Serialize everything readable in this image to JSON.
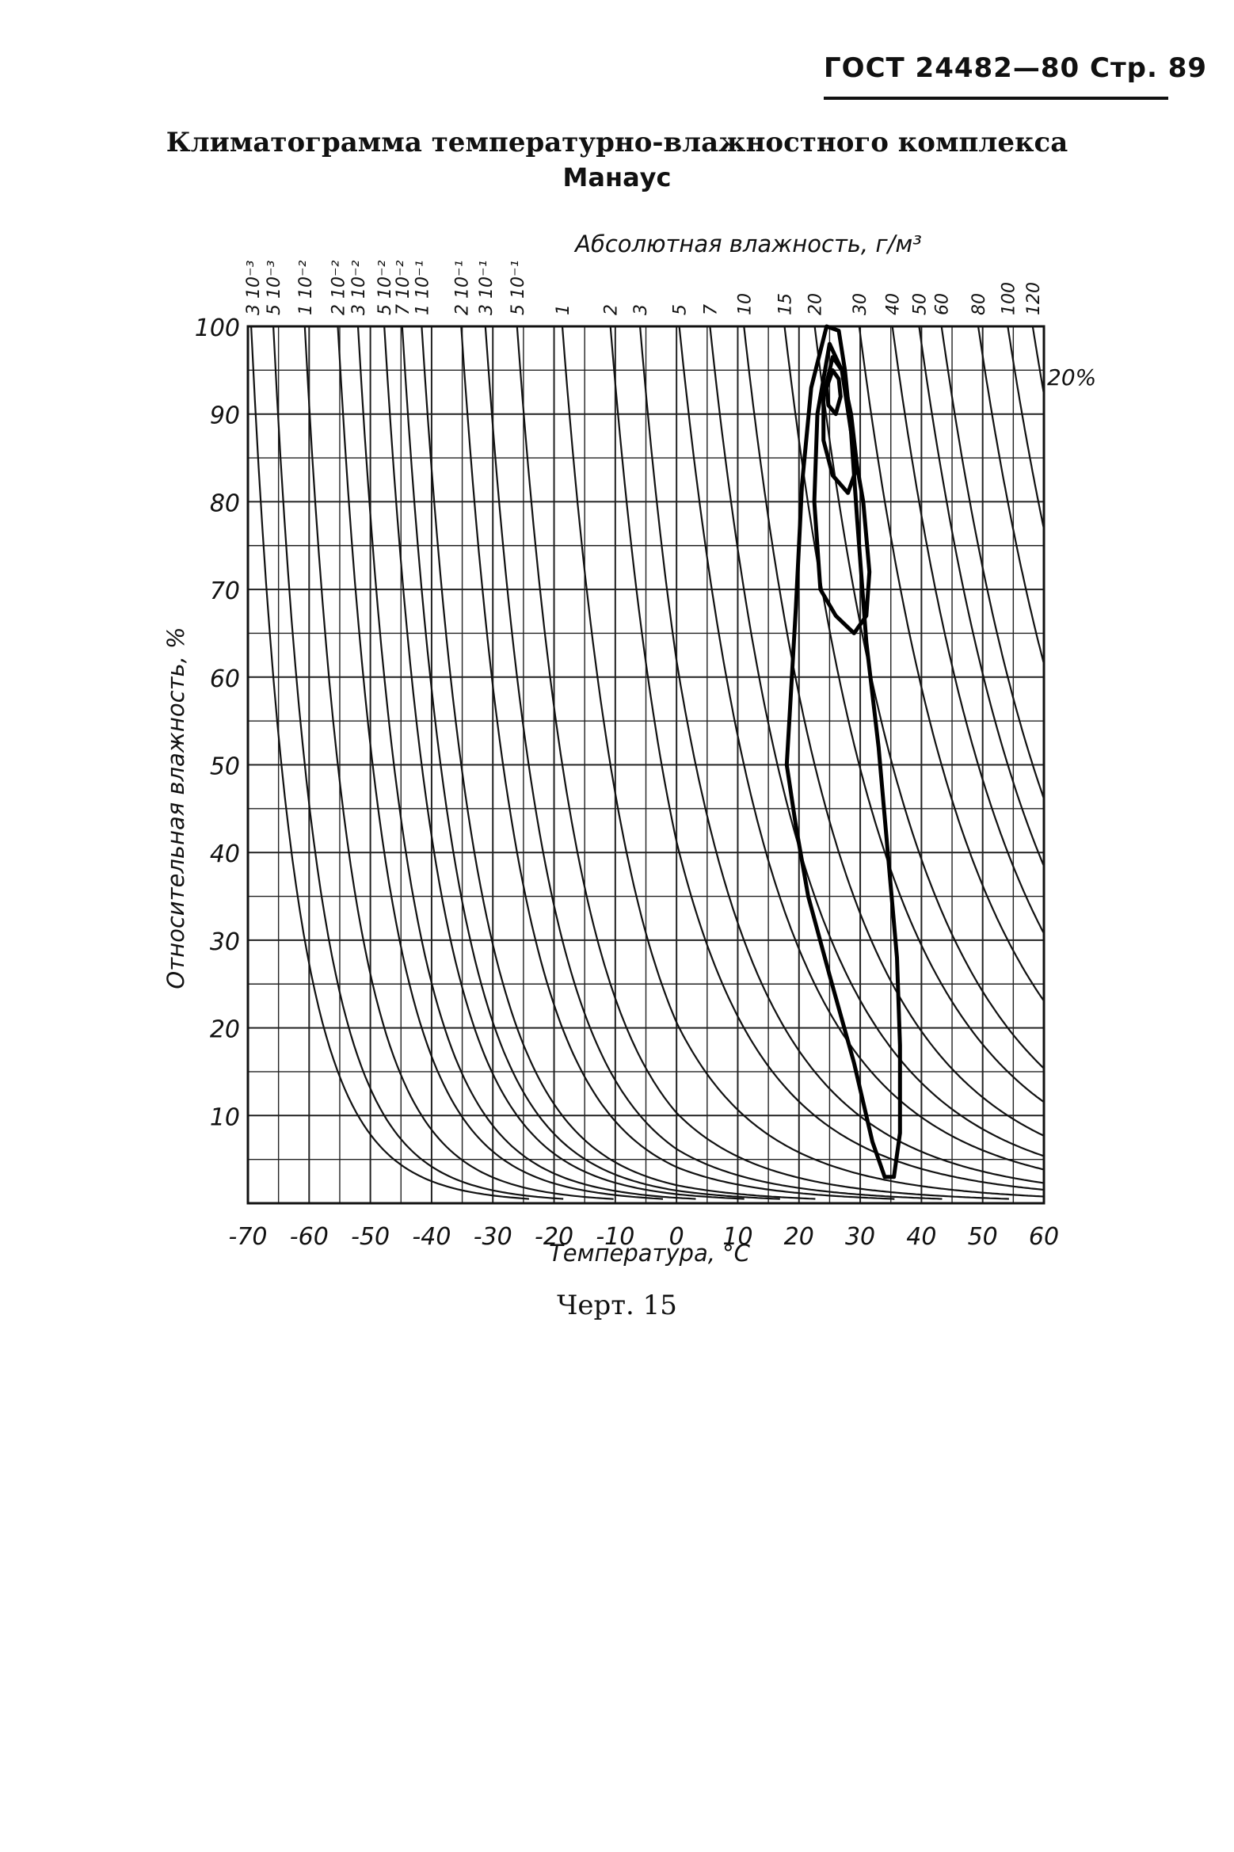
{
  "header": {
    "text": "ГОСТ 24482—80 Стр. 89"
  },
  "title": {
    "line1": "Климатограмма температурно-влажностного комплекса",
    "line2": "Манаус"
  },
  "caption": "Черт. 15",
  "chart_data": {
    "type": "line",
    "xlabel": "Температура, °С",
    "ylabel": "Относительная влажность, %",
    "toplabel": "Абсолютная влажность, г/м³",
    "xlim": [
      -70,
      60
    ],
    "ylim": [
      0,
      100
    ],
    "x_ticks": [
      "-70",
      "-60",
      "-50",
      "-40",
      "-30",
      "-20",
      "-10",
      "0",
      "10",
      "20",
      "30",
      "40",
      "50",
      "60"
    ],
    "y_ticks": [
      "10",
      "20",
      "30",
      "40",
      "50",
      "60",
      "70",
      "80",
      "90",
      "100"
    ],
    "grid": true,
    "abs_humidity_isolines": [
      {
        "label": "3 10⁻³",
        "value": 0.003
      },
      {
        "label": "5 10⁻³",
        "value": 0.005
      },
      {
        "label": "1 10⁻²",
        "value": 0.01
      },
      {
        "label": "2 10⁻²",
        "value": 0.02
      },
      {
        "label": "3 10⁻²",
        "value": 0.03
      },
      {
        "label": "5 10⁻²",
        "value": 0.05
      },
      {
        "label": "7 10⁻²",
        "value": 0.07
      },
      {
        "label": "1 10⁻¹",
        "value": 0.1
      },
      {
        "label": "2 10⁻¹",
        "value": 0.2
      },
      {
        "label": "3 10⁻¹",
        "value": 0.3
      },
      {
        "label": "5 10⁻¹",
        "value": 0.5
      },
      {
        "label": "1",
        "value": 1
      },
      {
        "label": "2",
        "value": 2
      },
      {
        "label": "3",
        "value": 3
      },
      {
        "label": "5",
        "value": 5
      },
      {
        "label": "7",
        "value": 7
      },
      {
        "label": "10",
        "value": 10
      },
      {
        "label": "15",
        "value": 15
      },
      {
        "label": "20",
        "value": 20
      },
      {
        "label": "30",
        "value": 30
      },
      {
        "label": "40",
        "value": 40
      },
      {
        "label": "50",
        "value": 50
      },
      {
        "label": "60",
        "value": 60
      },
      {
        "label": "80",
        "value": 80
      },
      {
        "label": "100",
        "value": 100
      },
      {
        "label": "120",
        "value": 120
      }
    ],
    "annotation": "20%",
    "series": [
      {
        "points": [
          [
            24.5,
            100
          ],
          [
            22,
            93
          ],
          [
            20.5,
            82
          ],
          [
            19.5,
            68
          ],
          [
            18.5,
            56
          ],
          [
            18,
            50
          ],
          [
            19.5,
            43
          ],
          [
            21.5,
            35
          ],
          [
            25,
            26
          ],
          [
            29,
            16
          ],
          [
            32,
            7
          ],
          [
            34,
            3
          ],
          [
            35.5,
            3
          ],
          [
            36.5,
            8
          ],
          [
            36.5,
            18
          ],
          [
            36,
            28
          ],
          [
            34.5,
            40
          ],
          [
            33,
            52
          ],
          [
            31,
            64
          ],
          [
            29.5,
            78
          ],
          [
            28.5,
            88
          ],
          [
            27.5,
            95
          ],
          [
            26.5,
            99.5
          ],
          [
            24.5,
            100
          ]
        ]
      },
      {
        "points": [
          [
            25,
            98
          ],
          [
            23,
            90
          ],
          [
            22.5,
            80
          ],
          [
            23.5,
            70
          ],
          [
            26,
            67
          ],
          [
            29,
            65
          ],
          [
            31,
            67
          ],
          [
            31.5,
            72
          ],
          [
            30.5,
            80
          ],
          [
            28.5,
            88
          ],
          [
            27,
            95
          ],
          [
            25,
            98
          ]
        ]
      },
      {
        "points": [
          [
            25.5,
            96.5
          ],
          [
            24,
            92
          ],
          [
            24,
            87
          ],
          [
            25.5,
            83
          ],
          [
            28,
            81
          ],
          [
            29.5,
            84
          ],
          [
            28.5,
            90
          ],
          [
            27,
            95
          ],
          [
            25.5,
            96.5
          ]
        ]
      },
      {
        "points": [
          [
            25.5,
            95
          ],
          [
            24.5,
            93
          ],
          [
            24.8,
            91
          ],
          [
            26,
            90
          ],
          [
            26.8,
            92
          ],
          [
            26.5,
            94
          ],
          [
            25.5,
            95
          ]
        ]
      }
    ]
  }
}
